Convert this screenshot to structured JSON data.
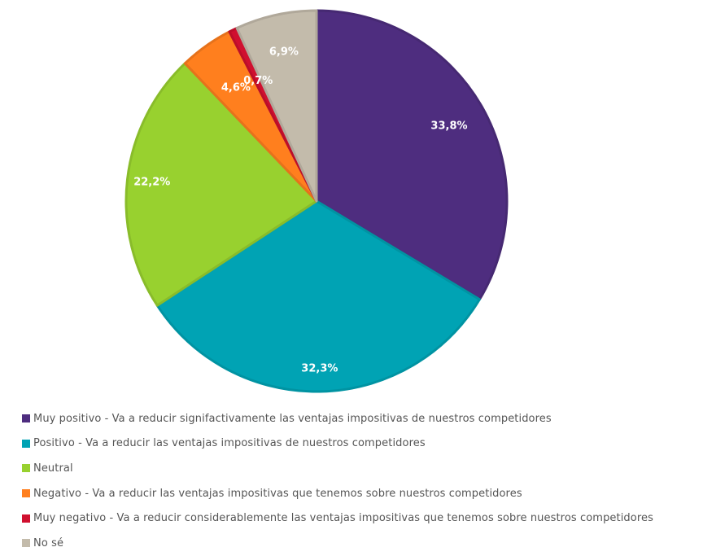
{
  "chart_data": {
    "type": "pie",
    "title": "",
    "start_angle_deg": 0,
    "direction": "clockwise",
    "categories": [
      "Muy positivo - Va a reducir signifactivamente las ventajas impositivas de nuestros competidores",
      "Positivo - Va a reducir las ventajas impositivas de nuestros competidores",
      "Neutral",
      "Negativo - Va a reducir las ventajas impositivas que tenemos sobre nuestros competidores",
      "Muy negativo - Va a reducir considerablemente las ventajas impositivas que tenemos sobre nuestros competidores",
      "No sé"
    ],
    "values": [
      33.8,
      32.3,
      22.2,
      4.6,
      0.7,
      6.9
    ],
    "labels": [
      "33,8%",
      "32,3%",
      "22,2%",
      "4,6%",
      "0,7%",
      "6,9%"
    ],
    "colors": [
      "#4e2d7f",
      "#00a3b4",
      "#98d12f",
      "#ff7f1e",
      "#d0102f",
      "#c3bbab"
    ],
    "legend_position": "bottom"
  },
  "legend": {
    "items": [
      {
        "label": "Muy positivo - Va a reducir signifactivamente las ventajas impositivas de nuestros competidores",
        "color": "#4e2d7f"
      },
      {
        "label": "Positivo - Va a reducir las ventajas impositivas de nuestros competidores",
        "color": "#00a3b4"
      },
      {
        "label": "Neutral",
        "color": "#98d12f"
      },
      {
        "label": "Negativo - Va a reducir las ventajas impositivas que tenemos sobre nuestros competidores",
        "color": "#ff7f1e"
      },
      {
        "label": "Muy negativo - Va a reducir considerablemente las ventajas impositivas que tenemos sobre nuestros competidores",
        "color": "#d0102f"
      },
      {
        "label": "No sé",
        "color": "#c3bbab"
      }
    ]
  }
}
